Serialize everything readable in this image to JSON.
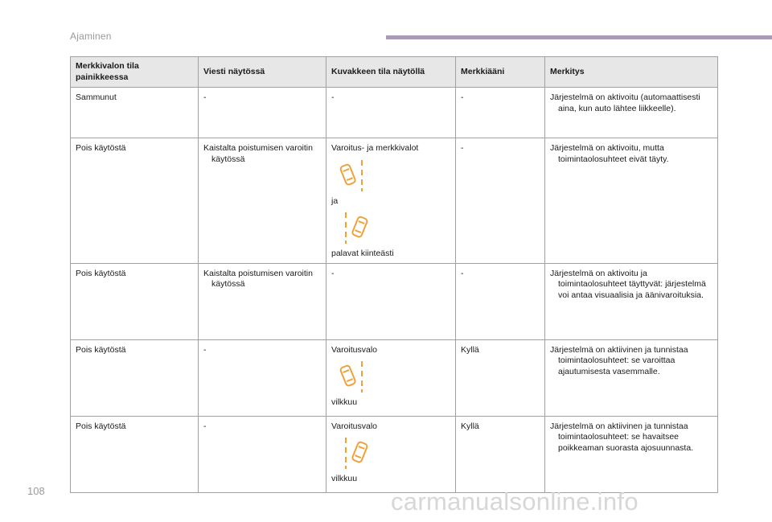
{
  "header": {
    "section_title": "Ajaminen"
  },
  "footer": {
    "page_number": "108",
    "watermark": "carmanualsonline.info"
  },
  "colors": {
    "accent_bar": "#a99bb6",
    "icon_orange": "#f0a13a",
    "header_bg": "#e7e7e7"
  },
  "table": {
    "columns": [
      "Merkkivalon tila\npainikkeessa",
      "Viesti näytössä",
      "Kuvakkeen tila näytöllä",
      "Merkkiääni",
      "Merkitys"
    ],
    "rows": [
      {
        "c1": "Sammunut",
        "c2": "-",
        "c3_lines": [
          "-"
        ],
        "c4": "-",
        "c5_first": "Järjestelmä on aktivoitu (automaattisesti",
        "c5_rest": "aina, kun auto lähtee liikkeelle)."
      },
      {
        "c1": "Pois käytöstä",
        "c2_first": "Kaistalta poistumisen varoitin",
        "c2_rest": "käytössä",
        "c3_lines": [
          "Varoitus- ja merkkivalot",
          "ja",
          "palavat kiinteästi"
        ],
        "c3_icons": [
          "lane-departure-right-icon",
          "lane-departure-left-icon"
        ],
        "c4": "-",
        "c5_first": "Järjestelmä on aktivoitu, mutta",
        "c5_rest": "toimintaolosuhteet eivät täyty."
      },
      {
        "c1": "Pois käytöstä",
        "c2_first": "Kaistalta poistumisen varoitin",
        "c2_rest": "käytössä",
        "c3_lines": [
          "-"
        ],
        "c4": "-",
        "c5_first": "Järjestelmä on aktivoitu ja",
        "c5_rest": "toimintaolosuhteet täyttyvät: järjestelmä\nvoi antaa visuaalisia ja äänivaroituksia."
      },
      {
        "c1": "Pois käytöstä",
        "c2": "-",
        "c3_lines": [
          "Varoitusvalo",
          "vilkkuu"
        ],
        "c3_icons": [
          "lane-departure-right-icon"
        ],
        "c4": "Kyllä",
        "c5_first": "Järjestelmä on aktiivinen ja tunnistaa",
        "c5_rest": "toimintaolosuhteet: se varoittaa\najautumisesta vasemmalle."
      },
      {
        "c1": "Pois käytöstä",
        "c2": "-",
        "c3_lines": [
          "Varoitusvalo",
          "vilkkuu"
        ],
        "c3_icons": [
          "lane-departure-left-icon"
        ],
        "c4": "Kyllä",
        "c5_first": "Järjestelmä on aktiivinen ja tunnistaa",
        "c5_rest": "toimintaolosuhteet: se havaitsee\npoikkeaman suorasta ajosuunnasta."
      }
    ]
  }
}
